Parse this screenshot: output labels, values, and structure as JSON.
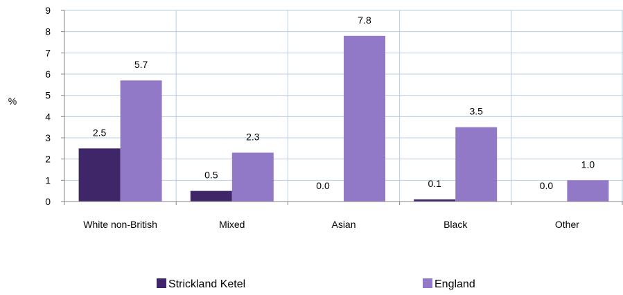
{
  "chart_data": {
    "type": "bar",
    "title": "",
    "xlabel": "",
    "ylabel": "%",
    "ylim": [
      0,
      9
    ],
    "yticks": [
      0,
      1,
      2,
      3,
      4,
      5,
      6,
      7,
      8,
      9
    ],
    "categories": [
      "White non-British",
      "Mixed",
      "Asian",
      "Black",
      "Other"
    ],
    "series": [
      {
        "name": "Strickland Ketel",
        "color": "#3f2669",
        "values": [
          2.5,
          0.5,
          0.0,
          0.1,
          0.0
        ],
        "labels": [
          "2.5",
          "0.5",
          "0.0",
          "0.1",
          "0.0"
        ]
      },
      {
        "name": "England",
        "color": "#9179c7",
        "values": [
          5.7,
          2.3,
          7.8,
          3.5,
          1.0
        ],
        "labels": [
          "5.7",
          "2.3",
          "7.8",
          "3.5",
          "1.0"
        ]
      }
    ],
    "grid": true,
    "gridlines": "vertical and horizontal",
    "legend_position": "bottom"
  }
}
